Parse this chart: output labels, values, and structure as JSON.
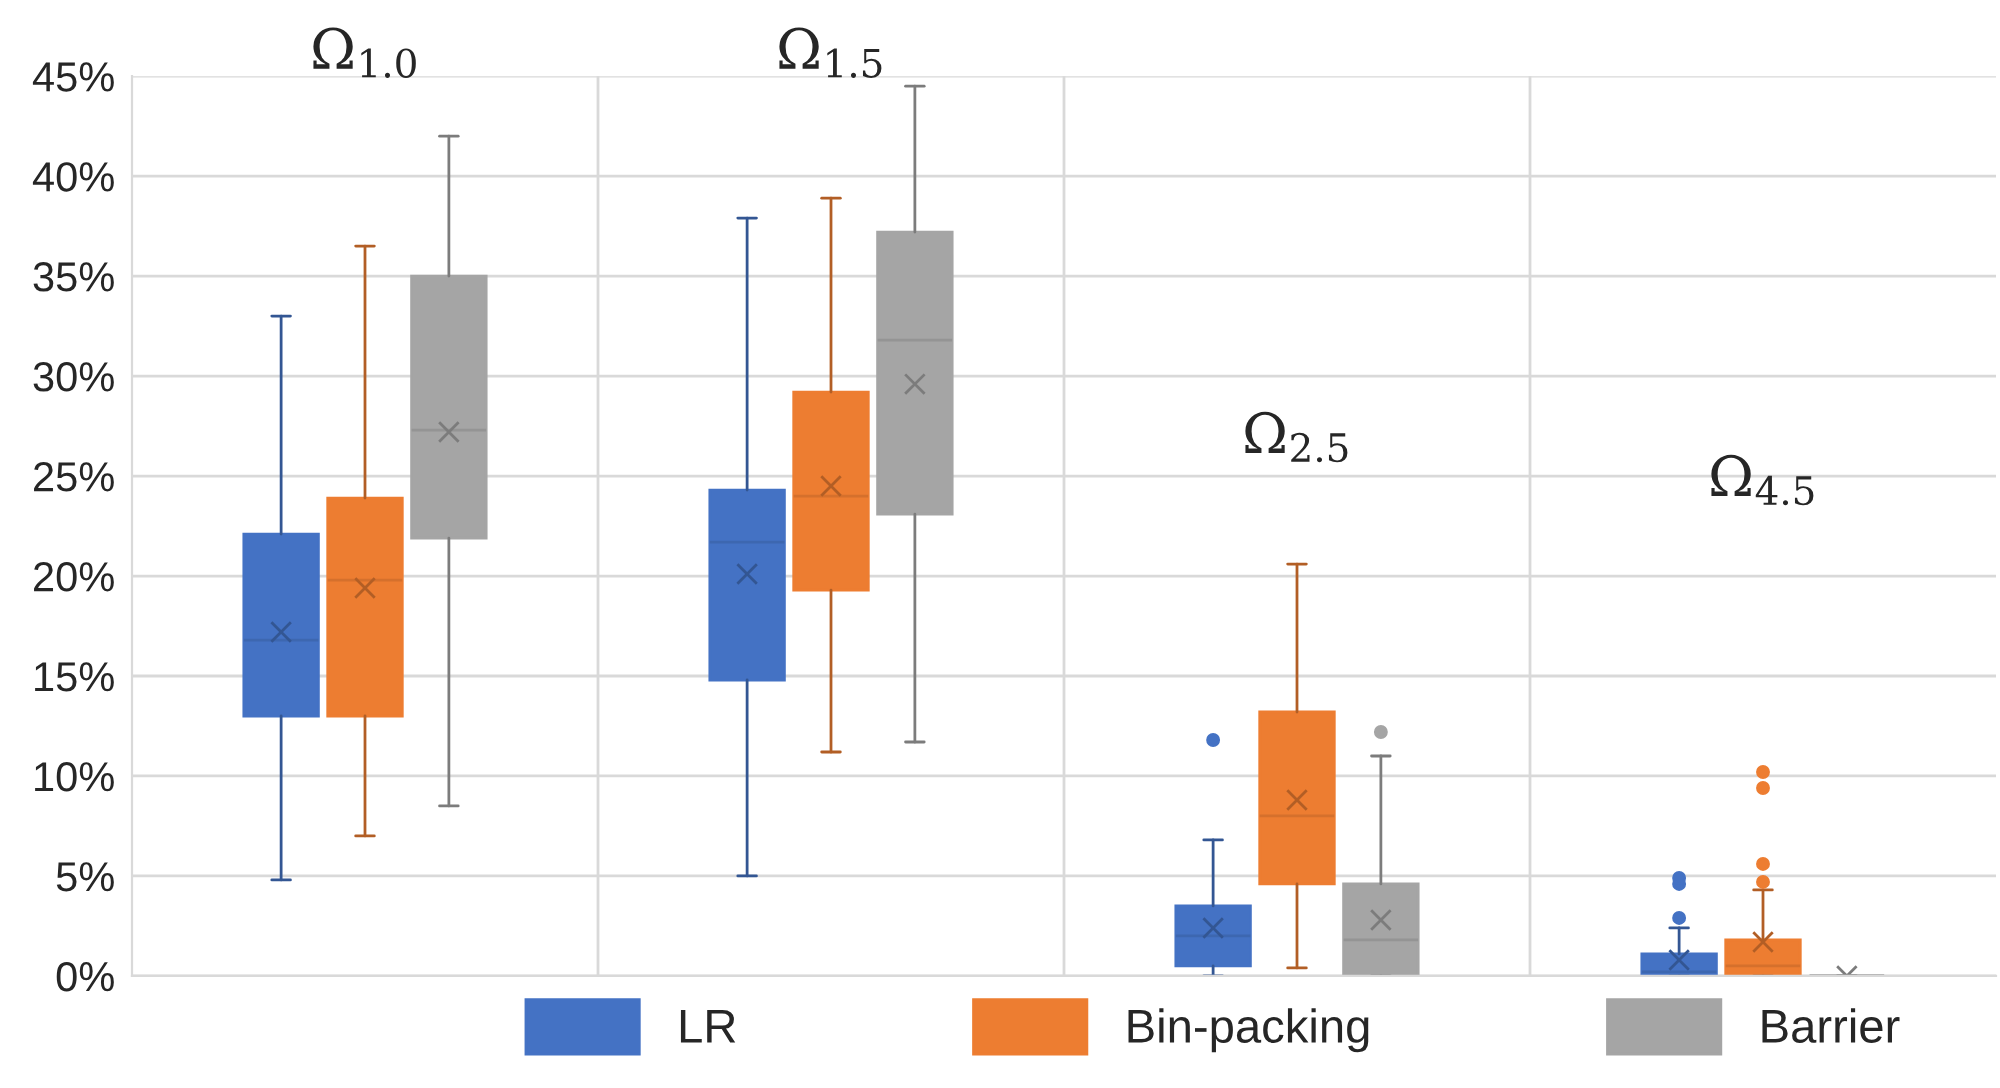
{
  "chart_data": {
    "type": "box",
    "categories": [
      "Ω$_{1.0}$",
      "Ω$_{1.5}$",
      "Ω$_{2.5}$",
      "Ω$_{4.5}$"
    ],
    "ylim": [
      0,
      45
    ],
    "yticks": [
      {
        "value": 0,
        "label": "0%"
      },
      {
        "value": 5,
        "label": "5%"
      },
      {
        "value": 10,
        "label": "10%"
      },
      {
        "value": 15,
        "label": "15%"
      },
      {
        "value": 20,
        "label": "20%"
      },
      {
        "value": 25,
        "label": "25%"
      },
      {
        "value": 30,
        "label": "30%"
      },
      {
        "value": 35,
        "label": "35%"
      },
      {
        "value": 40,
        "label": "40%"
      },
      {
        "value": 45,
        "label": "45%"
      }
    ],
    "grid": true,
    "legend": "bottom",
    "marker": "cross",
    "series": [
      {
        "name": "LR",
        "color": "#4472c4",
        "boxes": [
          {
            "low": 4.8,
            "q1": 13,
            "median": 16.8,
            "q3": 22.1,
            "high": 33,
            "mean": 17.2
          },
          {
            "low": 5.0,
            "q1": 14.8,
            "median": 21.7,
            "q3": 24.3,
            "high": 37.9,
            "mean": 20.1
          },
          {
            "low": 0,
            "q1": 0.5,
            "median": 2.0,
            "q3": 3.5,
            "high": 6.8,
            "mean": 2.4,
            "outliers": [
              11.8
            ]
          },
          {
            "low": 0,
            "q1": 0,
            "median": 0.2,
            "q3": 1.1,
            "high": 2.4,
            "mean": 0.8,
            "outliers": [
              2.9,
              4.6,
              4.9
            ]
          }
        ]
      },
      {
        "name": "Bin-packing",
        "color": "#ed7d31",
        "boxes": [
          {
            "low": 7.0,
            "q1": 13,
            "median": 19.8,
            "q3": 23.9,
            "high": 36.5,
            "mean": 19.4
          },
          {
            "low": 11.2,
            "q1": 19.3,
            "median": 24.0,
            "q3": 29.2,
            "high": 38.9,
            "mean": 24.5
          },
          {
            "low": 0.4,
            "q1": 4.6,
            "median": 8.0,
            "q3": 13.2,
            "high": 20.6,
            "mean": 8.8
          },
          {
            "low": 0,
            "q1": 0,
            "median": 0.5,
            "q3": 1.8,
            "high": 4.3,
            "mean": 1.7,
            "outliers": [
              4.7,
              5.6,
              9.4,
              10.2
            ]
          }
        ]
      },
      {
        "name": "Barrier",
        "color": "#a5a5a5",
        "boxes": [
          {
            "low": 8.5,
            "q1": 21.9,
            "median": 27.3,
            "q3": 35,
            "high": 42,
            "mean": 27.2
          },
          {
            "low": 11.7,
            "q1": 23.1,
            "median": 31.8,
            "q3": 37.2,
            "high": 44.5,
            "mean": 29.6
          },
          {
            "low": 0,
            "q1": 0,
            "median": 1.8,
            "q3": 4.6,
            "high": 11.0,
            "mean": 2.8,
            "outliers": [
              12.2
            ]
          },
          {
            "low": 0,
            "q1": 0,
            "median": 0,
            "q3": 0,
            "high": 0,
            "mean": 0
          }
        ]
      }
    ]
  }
}
